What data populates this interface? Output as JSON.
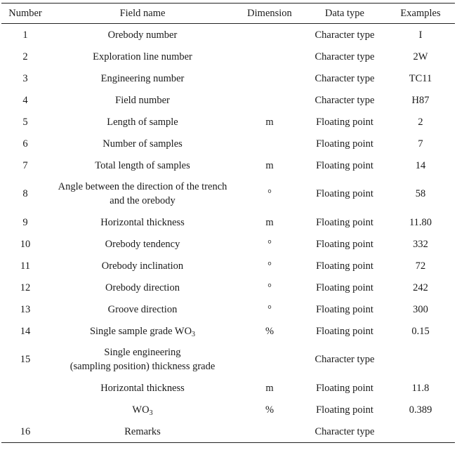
{
  "headers": {
    "number": "Number",
    "field_name": "Field name",
    "dimension": "Dimension",
    "data_type": "Data type",
    "examples": "Examples"
  },
  "rows": [
    {
      "number": "1",
      "field": "Orebody number",
      "dimension": "",
      "type": "Character type",
      "example": "I"
    },
    {
      "number": "2",
      "field": "Exploration line number",
      "dimension": "",
      "type": "Character type",
      "example": "2W"
    },
    {
      "number": "3",
      "field": "Engineering number",
      "dimension": "",
      "type": "Character type",
      "example": "TC11"
    },
    {
      "number": "4",
      "field": "Field number",
      "dimension": "",
      "type": "Character type",
      "example": "H87"
    },
    {
      "number": "5",
      "field": "Length of sample",
      "dimension": "m",
      "type": "Floating point",
      "example": "2"
    },
    {
      "number": "6",
      "field": "Number of samples",
      "dimension": "",
      "type": "Floating point",
      "example": "7"
    },
    {
      "number": "7",
      "field": "Total length of samples",
      "dimension": "m",
      "type": "Floating point",
      "example": "14"
    },
    {
      "number": "8",
      "field_line1": "Angle between the direction of the trench",
      "field_line2": "and the orebody",
      "dimension": "°",
      "type": "Floating point",
      "example": "58"
    },
    {
      "number": "9",
      "field": "Horizontal thickness",
      "dimension": "m",
      "type": "Floating point",
      "example": "11.80"
    },
    {
      "number": "10",
      "field": "Orebody tendency",
      "dimension": "°",
      "type": "Floating point",
      "example": "332"
    },
    {
      "number": "11",
      "field": "Orebody inclination",
      "dimension": "°",
      "type": "Floating point",
      "example": "72"
    },
    {
      "number": "12",
      "field": "Orebody direction",
      "dimension": "°",
      "type": "Floating point",
      "example": "242"
    },
    {
      "number": "13",
      "field": "Groove direction",
      "dimension": "°",
      "type": "Floating point",
      "example": "300"
    },
    {
      "number": "14",
      "field_main": "Single sample grade WO",
      "field_sub": "3",
      "dimension": "%",
      "type": "Floating point",
      "example": "0.15"
    },
    {
      "number": "15",
      "field_line1": "Single engineering",
      "field_line2": "(sampling position) thickness grade",
      "dimension": "",
      "type": "Character type",
      "example": ""
    },
    {
      "number": "",
      "field": "Horizontal thickness",
      "dimension": "m",
      "type": "Floating point",
      "example": "11.8"
    },
    {
      "number": "",
      "field_main": "WO",
      "field_sub": "3",
      "dimension": "%",
      "type": "Floating point",
      "example": "0.389"
    },
    {
      "number": "16",
      "field": "Remarks",
      "dimension": "",
      "type": "Character type",
      "example": ""
    }
  ]
}
